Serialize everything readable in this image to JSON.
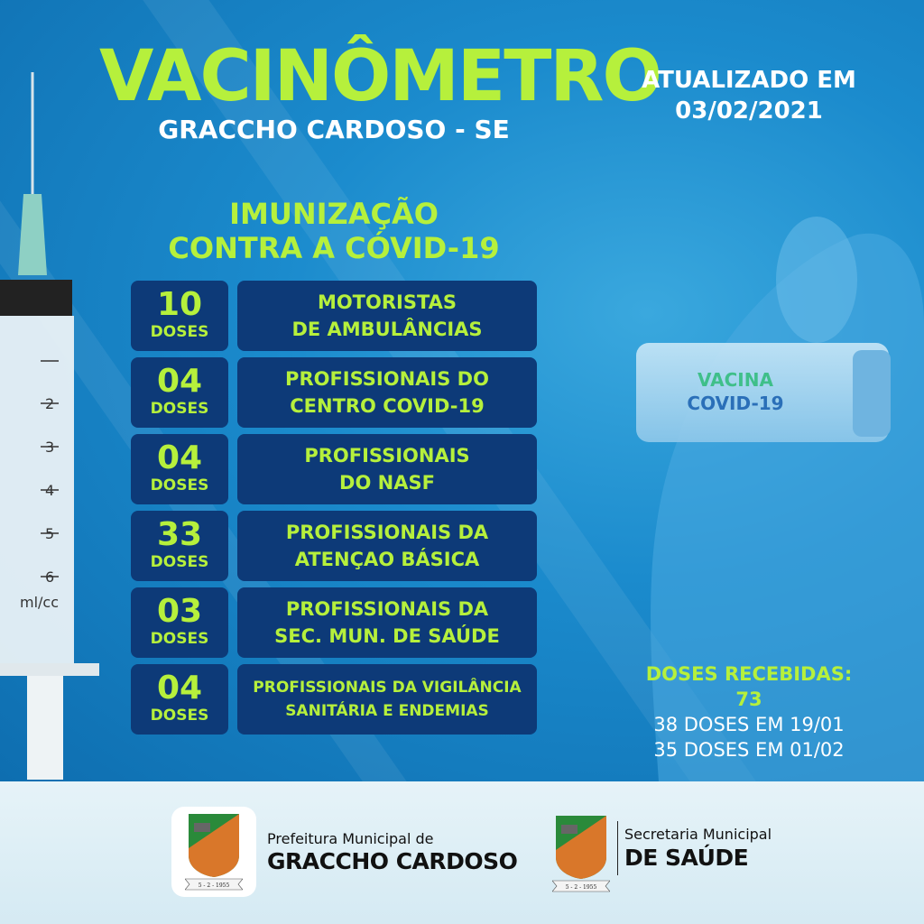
{
  "header": {
    "title": "VACINÔMETRO",
    "city": "GRACCHO CARDOSO - SE",
    "updated_line1": "ATUALIZADO EM",
    "updated_line2": "03/02/2021"
  },
  "section": {
    "heading_line1": "IMUNIZAÇÃO",
    "heading_line2": "CONTRA A CÓVID-19"
  },
  "rows": [
    {
      "count": "10",
      "unit": "DOSES",
      "line1": "MOTORISTAS",
      "line2": "DE AMBULÂNCIAS"
    },
    {
      "count": "04",
      "unit": "DOSES",
      "line1": "PROFISSIONAIS DO",
      "line2": "CENTRO COVID-19"
    },
    {
      "count": "04",
      "unit": "DOSES",
      "line1": "PROFISSIONAIS",
      "line2": "DO NASF"
    },
    {
      "count": "33",
      "unit": "DOSES",
      "line1": "PROFISSIONAIS DA",
      "line2": "ATENÇAO BÁSICA"
    },
    {
      "count": "03",
      "unit": "DOSES",
      "line1": "PROFISSIONAIS DA",
      "line2": "SEC. MUN. DE SAÚDE"
    },
    {
      "count": "04",
      "unit": "DOSES",
      "line1": "PROFISSIONAIS DA VIGILÂNCIA",
      "line2": "SANITÁRIA E ENDEMIAS"
    }
  ],
  "summary": {
    "received": "DOSES RECEBIDAS: 73",
    "batch1": "38 DOSES EM 19/01",
    "batch2": "35 DOSES EM 01/02"
  },
  "vial": {
    "line1": "VACINA",
    "line2": "COVID-19"
  },
  "syringe": {
    "marks": [
      "1",
      "2",
      "3",
      "4",
      "5",
      "6"
    ],
    "unit": "ml/cc"
  },
  "footer": {
    "prefeitura_line1": "Prefeitura Municipal de",
    "prefeitura_line2": "GRACCHO CARDOSO",
    "secretaria_line1": "Secretaria Municipal",
    "secretaria_line2": "DE SAÚDE",
    "crest_text": "GRACCHO CARDOSO",
    "crest_date": "5 - 2 - 1955"
  },
  "colors": {
    "accent_green": "#b6f03c",
    "box_navy": "#0d3a78",
    "background_blue": "#1b8bcd"
  }
}
